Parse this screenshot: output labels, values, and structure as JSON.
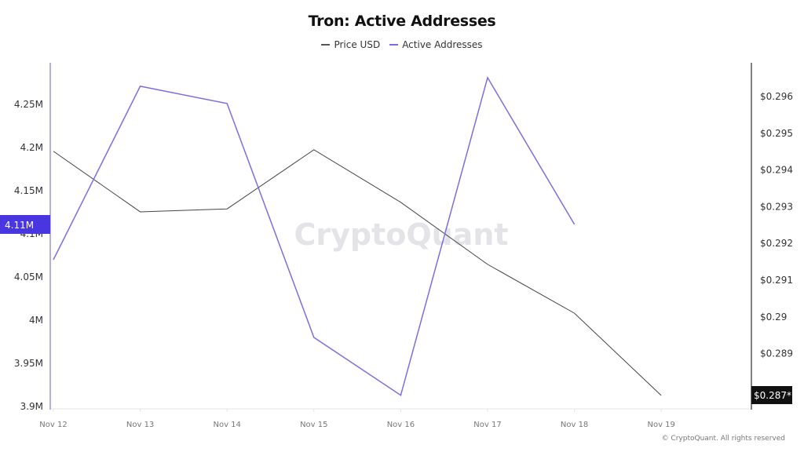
{
  "header": {
    "title": "Tron: Active Addresses"
  },
  "legend": [
    {
      "label": "Price USD",
      "color": "#555555"
    },
    {
      "label": "Active Addresses",
      "color": "#7b6fe0"
    }
  ],
  "watermark": "CryptoQuant",
  "footer": {
    "copyright": "© CryptoQuant. All rights reserved"
  },
  "colors": {
    "price_line": "#444444",
    "active_line": "#7b6fe0",
    "left_axis": "#b3aee6",
    "right_axis": "#555555",
    "active_badge_bg": "#4a36e0",
    "price_badge_bg": "#111111"
  },
  "badges": {
    "active_current": "4.11M",
    "price_current": "$0.287*"
  },
  "chart_data": {
    "type": "line",
    "title": "Tron: Active Addresses",
    "categories": [
      "Nov 12",
      "Nov 13",
      "Nov 14",
      "Nov 15",
      "Nov 16",
      "Nov 17",
      "Nov 18",
      "Nov 19"
    ],
    "series": [
      {
        "name": "Price USD",
        "axis": "right",
        "color": "#444444",
        "values": [
          0.29451,
          0.29286,
          0.29294,
          0.29455,
          0.29312,
          0.29143,
          0.2901,
          0.28786
        ]
      },
      {
        "name": "Active Addresses",
        "axis": "left",
        "color": "#7b6fe0",
        "values": [
          4070000,
          4271000,
          4251000,
          3980000,
          3913000,
          4281000,
          4111000,
          null
        ]
      }
    ],
    "left_axis": {
      "label": "Active Addresses",
      "ticks": [
        "4.25M",
        "4.2M",
        "4.15M",
        "4.1M",
        "4.05M",
        "4M",
        "3.95M",
        "3.9M"
      ],
      "tick_values": [
        4250000,
        4200000,
        4150000,
        4100000,
        4050000,
        4000000,
        3950000,
        3900000
      ],
      "ylim": [
        3900000,
        4290000
      ]
    },
    "right_axis": {
      "label": "Price USD",
      "ticks": [
        "$0.296",
        "$0.295",
        "$0.294",
        "$0.293",
        "$0.292",
        "$0.291",
        "$0.29",
        "$0.289"
      ],
      "tick_values": [
        0.296,
        0.295,
        0.294,
        0.293,
        0.292,
        0.291,
        0.29,
        0.289
      ],
      "ylim": [
        0.2872,
        0.2974
      ]
    },
    "xlabel": "",
    "grid": false,
    "legend_position": "top"
  }
}
